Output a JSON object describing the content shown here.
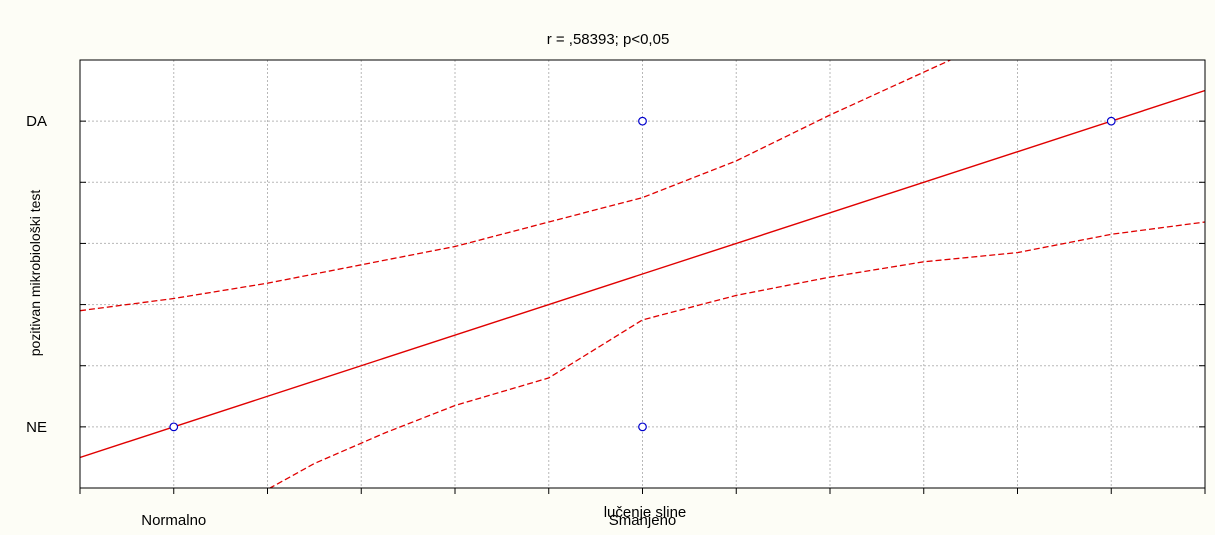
{
  "chart_data": {
    "type": "scatter",
    "title": "r = ,58393; p<0,05",
    "xlabel": "lučenje sline",
    "ylabel": "pozitivan mikrobiološki test",
    "x_tick_labels": [
      {
        "x": 0,
        "label": "Normalno"
      },
      {
        "x": 1,
        "label": "Smanjeno"
      }
    ],
    "y_tick_labels": [
      {
        "y": 0,
        "label": "NE"
      },
      {
        "y": 1,
        "label": "DA"
      }
    ],
    "xlim": [
      -0.2,
      2.2
    ],
    "ylim": [
      -0.2,
      1.2
    ],
    "grid": true,
    "points": [
      {
        "x": 0,
        "y": 0
      },
      {
        "x": 1,
        "y": 0
      },
      {
        "x": 1,
        "y": 1
      },
      {
        "x": 2,
        "y": 1
      }
    ],
    "regression_line": {
      "slope": 0.5,
      "intercept": 0.0
    },
    "confidence_upper": [
      [
        -0.2,
        0.38
      ],
      [
        0.0,
        0.42
      ],
      [
        0.2,
        0.47
      ],
      [
        0.4,
        0.53
      ],
      [
        0.6,
        0.59
      ],
      [
        0.8,
        0.67
      ],
      [
        1.0,
        0.75
      ],
      [
        1.2,
        0.87
      ],
      [
        1.4,
        1.02
      ],
      [
        1.6,
        1.16
      ],
      [
        1.7,
        1.23
      ]
    ],
    "confidence_lower": [
      [
        0.17,
        -0.23
      ],
      [
        0.3,
        -0.12
      ],
      [
        0.45,
        -0.02
      ],
      [
        0.6,
        0.07
      ],
      [
        0.8,
        0.16
      ],
      [
        1.0,
        0.35
      ],
      [
        1.2,
        0.43
      ],
      [
        1.4,
        0.49
      ],
      [
        1.6,
        0.54
      ],
      [
        1.8,
        0.57
      ],
      [
        2.0,
        0.63
      ],
      [
        2.2,
        0.67
      ]
    ],
    "colors": {
      "background": "#fdfdf6",
      "plot_background": "#ffffff",
      "points": "#0000cc",
      "regression": "#e00000",
      "grid": "#b8b8b8"
    }
  }
}
